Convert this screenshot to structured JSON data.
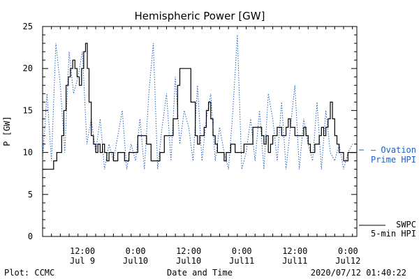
{
  "chart_data": {
    "type": "line",
    "title": "Hemispheric Power [GW]",
    "xlabel": "Date and Time",
    "ylabel": "P [GW]",
    "ylim": [
      0,
      25
    ],
    "y_ticks": [
      "0",
      "5",
      "10",
      "15",
      "20",
      "25"
    ],
    "x_ticks": [
      {
        "time": "12:00",
        "date": "Jul 9",
        "hours": 12
      },
      {
        "time": "0:00",
        "date": "Jul10",
        "hours": 24
      },
      {
        "time": "12:00",
        "date": "Jul10",
        "hours": 36
      },
      {
        "time": "0:00",
        "date": "Jul11",
        "hours": 48
      },
      {
        "time": "12:00",
        "date": "Jul11",
        "hours": 60
      },
      {
        "time": "0:00",
        "date": "Jul12",
        "hours": 72
      }
    ],
    "xlim_hours": [
      3,
      74
    ],
    "grid": false,
    "legend_position": "right",
    "series": [
      {
        "name": "SWPC 5-min HPI",
        "legend_line1": "SWPC",
        "legend_line2": "5-min HPI",
        "color": "#000000",
        "style": "solid",
        "x_hours": [
          3,
          5.5,
          5.5,
          6.2,
          6.8,
          7.3,
          7.8,
          8.3,
          8.8,
          9.3,
          9.8,
          10.3,
          10.8,
          11.3,
          11.8,
          12.3,
          12.7,
          13.1,
          13.5,
          14.0,
          14.5,
          15.0,
          15.5,
          16.0,
          16.5,
          17.0,
          17.5,
          18.0,
          18.5,
          19.0,
          19.5,
          20,
          21.5,
          22.5,
          23.5,
          24.5,
          25.5,
          26.5,
          27.5,
          28.5,
          29.5,
          30.5,
          31.5,
          32.5,
          33.5,
          34.0,
          34.5,
          35.5,
          36.5,
          37.5,
          38.0,
          38.5,
          39.0,
          39.5,
          40.0,
          40.5,
          41.0,
          41.5,
          42.0,
          42.5,
          43.0,
          43.5,
          44.0,
          44.5,
          45.5,
          46.5,
          47.5,
          48.5,
          49.5,
          50.5,
          51.5,
          52.5,
          53.0,
          53.5,
          54.0,
          54.5,
          55.0,
          55.5,
          56.0,
          56.5,
          57.0,
          57.5,
          58.0,
          58.5,
          59.0,
          59.5,
          60.0,
          61.0,
          62.0,
          62.5,
          63.0,
          63.5,
          64.5,
          65.5,
          66.0,
          66.5,
          67.0,
          67.5,
          68.0,
          68.5,
          69.0,
          69.5,
          70.0,
          70.5,
          71.0,
          71.5,
          72.0,
          73.0
        ],
        "values": [
          8,
          8,
          9,
          10,
          10,
          12,
          15,
          18,
          19,
          20,
          21,
          20,
          19,
          18,
          20,
          22,
          23,
          20,
          16,
          12,
          11,
          10,
          11,
          10,
          11,
          10,
          9,
          10,
          10,
          9,
          9,
          10,
          9,
          10,
          10,
          12,
          12,
          11,
          9,
          9,
          10,
          12,
          12,
          14,
          18,
          20,
          20,
          20,
          16,
          12,
          11,
          12,
          12,
          13,
          15,
          16,
          14,
          12,
          11,
          10,
          10,
          10,
          9,
          10,
          11,
          10,
          10,
          11,
          11,
          13,
          13,
          12,
          11,
          12,
          10,
          11,
          12,
          12,
          13,
          13,
          12,
          12,
          13,
          14,
          13,
          13,
          12,
          12,
          13,
          12,
          11,
          10,
          11,
          12,
          13,
          12,
          13,
          14,
          16,
          14,
          12,
          11,
          10,
          10,
          9,
          9,
          10,
          10
        ]
      },
      {
        "name": "Ovation Prime HPI",
        "legend_line1": "Ovation",
        "legend_line2": "Prime HPI",
        "color": "#1f5fc4",
        "style": "dotted",
        "x_hours": [
          3,
          4,
          5,
          6,
          7,
          8,
          9,
          10,
          11,
          12,
          13,
          14,
          15,
          16,
          17,
          18,
          19,
          20,
          21,
          22,
          23,
          24,
          25,
          26,
          27,
          28,
          29,
          30,
          31,
          32,
          33,
          34,
          35,
          36,
          37,
          38,
          39,
          40,
          41,
          42,
          43,
          44,
          45,
          46,
          47,
          48,
          49,
          50,
          51,
          52,
          53,
          54,
          55,
          56,
          57,
          58,
          59,
          60,
          61,
          62,
          63,
          64,
          65,
          66,
          67,
          68,
          69,
          70,
          71,
          72,
          73
        ],
        "values": [
          9,
          17,
          9,
          23,
          18,
          10,
          22,
          17,
          19,
          22,
          11,
          14,
          10,
          14,
          8,
          11,
          9,
          12,
          15,
          8,
          11,
          9,
          14,
          8,
          17,
          23,
          8,
          13,
          17,
          9,
          19,
          11,
          15,
          13,
          9,
          18,
          9,
          14,
          17,
          9,
          13,
          10,
          8,
          15,
          24,
          8,
          10,
          14,
          9,
          15,
          8,
          17,
          14,
          9,
          16,
          8,
          13,
          18,
          8,
          14,
          11,
          9,
          16,
          8,
          15,
          10,
          9,
          11,
          8,
          10,
          11
        ]
      }
    ]
  },
  "footer": {
    "left": "Plot: CCMC",
    "center": "Date and Time",
    "right": "2020/07/12 01:40:22"
  }
}
